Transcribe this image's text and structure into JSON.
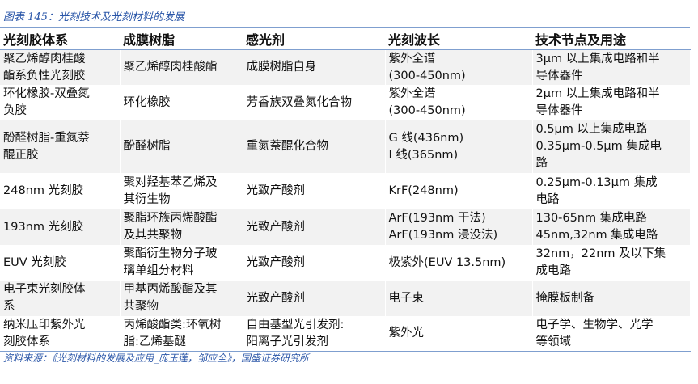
{
  "caption": "图表 145：光刻技术及光刻材料的发展",
  "source": "资料来源：《光刻材料的发展及应用_庞玉莲，邹应全》，国盛证券研究所",
  "colors": {
    "rule": "#7f9fcf",
    "caption": "#2a56a8",
    "row_fill": "#f2f2f2"
  },
  "headers": [
    "光刻胶体系",
    "成膜树脂",
    "感光剂",
    "光刻波长",
    "技术节点及用途"
  ],
  "rows": [
    [
      [
        "聚乙烯醇肉桂酸",
        "酯系负性光刻胶"
      ],
      [
        "聚乙烯醇肉桂酸酯"
      ],
      [
        "成膜树脂自身"
      ],
      [
        "紫外全谱",
        "(300-450nm)"
      ],
      [
        "3μm 以上集成电路和半",
        "导体器件"
      ]
    ],
    [
      [
        "环化橡胶-双叠氮",
        "负胶"
      ],
      [
        "环化橡胶"
      ],
      [
        "芳香族双叠氮化合物"
      ],
      [
        "紫外全谱",
        "(300-450nm)"
      ],
      [
        "2μm 以上集成电路和半",
        "导体器件"
      ]
    ],
    [
      [
        "酚醛树脂-重氮萘",
        "醌正胶"
      ],
      [
        "酚醛树脂"
      ],
      [
        "重氮萘醌化合物"
      ],
      [
        "G 线(436nm)",
        "I 线(365nm)"
      ],
      [
        "0.5μm 以上集成电路",
        "0.35μm-0.5μm 集成电",
        "路"
      ]
    ],
    [
      [
        "248nm 光刻胶"
      ],
      [
        "聚对羟基苯乙烯及",
        "其衍生物"
      ],
      [
        "光致产酸剂"
      ],
      [
        "KrF(248nm)"
      ],
      [
        "0.25μm-0.13μm 集成",
        "电路"
      ]
    ],
    [
      [
        "193nm 光刻胶"
      ],
      [
        "聚脂环族丙烯酸酯",
        "及其共聚物"
      ],
      [
        "光致产酸剂"
      ],
      [
        "ArF(193nm 干法)",
        "ArF(193nm 浸没法)"
      ],
      [
        "130-65nm 集成电路",
        "45nm,32nm 集成电路"
      ]
    ],
    [
      [
        "EUV 光刻胶"
      ],
      [
        "聚酯衍生物分子玻",
        "璃单组分材料"
      ],
      [
        "光致产酸剂"
      ],
      [
        "极紫外(EUV 13.5nm)"
      ],
      [
        "32nm，22nm 及以下集",
        "成电路"
      ]
    ],
    [
      [
        "电子束光刻胶体",
        "系"
      ],
      [
        "甲基丙烯酸酯及其",
        "共聚物"
      ],
      [
        "光致产酸剂"
      ],
      [
        "电子束"
      ],
      [
        "掩膜板制备"
      ]
    ],
    [
      [
        "纳米压印紫外光",
        "刻胶体系"
      ],
      [
        "丙烯酸酯类:环氧树",
        "脂:乙烯基醚"
      ],
      [
        "自由基型光引发剂:",
        "阳离子光引发剂"
      ],
      [
        "紫外光"
      ],
      [
        "电子学、生物学、光学",
        "等领域"
      ]
    ]
  ]
}
